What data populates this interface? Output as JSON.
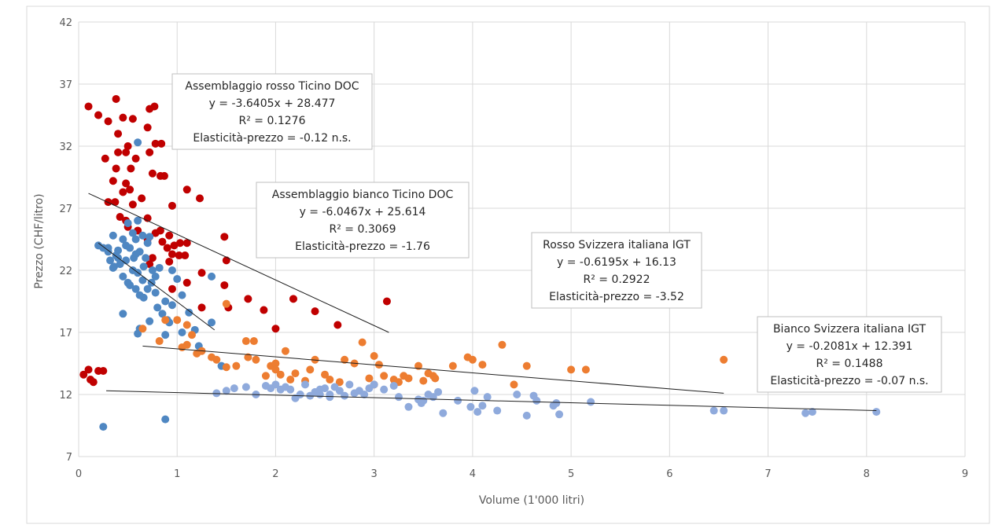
{
  "chart_data": {
    "type": "scatter",
    "title": "",
    "xlabel": "Volume (1'000 litri)",
    "ylabel": "Prezzo (CHF/litro)",
    "xlim": [
      0,
      9
    ],
    "ylim": [
      7,
      42
    ],
    "x_ticks": [
      "0",
      "1",
      "2",
      "3",
      "4",
      "5",
      "6",
      "7",
      "8",
      "9"
    ],
    "y_ticks": [
      "7",
      "12",
      "17",
      "22",
      "27",
      "32",
      "37",
      "42"
    ],
    "grid": true,
    "legend": "none",
    "series": [
      {
        "key": "rosso_doc",
        "color": "#c00000",
        "points": [
          [
            0.1,
            35.2
          ],
          [
            0.2,
            34.5
          ],
          [
            0.3,
            34.0
          ],
          [
            0.38,
            35.8
          ],
          [
            0.45,
            34.3
          ],
          [
            0.55,
            34.2
          ],
          [
            0.72,
            35.0
          ],
          [
            0.77,
            35.2
          ],
          [
            0.7,
            33.5
          ],
          [
            0.4,
            33.0
          ],
          [
            0.5,
            32.0
          ],
          [
            0.78,
            32.2
          ],
          [
            0.84,
            32.2
          ],
          [
            0.4,
            31.5
          ],
          [
            0.48,
            31.5
          ],
          [
            0.27,
            31.0
          ],
          [
            0.58,
            31.0
          ],
          [
            0.72,
            31.5
          ],
          [
            0.38,
            30.2
          ],
          [
            0.53,
            30.2
          ],
          [
            0.75,
            29.8
          ],
          [
            0.83,
            29.6
          ],
          [
            0.87,
            29.6
          ],
          [
            0.35,
            29.2
          ],
          [
            0.48,
            29.0
          ],
          [
            0.52,
            28.5
          ],
          [
            0.45,
            28.3
          ],
          [
            0.64,
            27.8
          ],
          [
            0.3,
            27.5
          ],
          [
            0.37,
            27.5
          ],
          [
            0.55,
            27.3
          ],
          [
            0.95,
            27.2
          ],
          [
            1.1,
            28.5
          ],
          [
            1.23,
            27.8
          ],
          [
            0.42,
            26.3
          ],
          [
            0.48,
            26.0
          ],
          [
            0.7,
            26.2
          ],
          [
            0.5,
            25.5
          ],
          [
            0.6,
            25.2
          ],
          [
            0.78,
            25.0
          ],
          [
            0.83,
            25.2
          ],
          [
            0.92,
            24.8
          ],
          [
            0.7,
            24.5
          ],
          [
            0.85,
            24.3
          ],
          [
            0.9,
            23.8
          ],
          [
            0.97,
            24.0
          ],
          [
            1.03,
            24.2
          ],
          [
            1.1,
            24.2
          ],
          [
            0.95,
            23.3
          ],
          [
            1.02,
            23.2
          ],
          [
            1.08,
            23.2
          ],
          [
            0.75,
            23.0
          ],
          [
            0.92,
            22.7
          ],
          [
            0.72,
            22.5
          ],
          [
            1.48,
            24.7
          ],
          [
            1.5,
            22.8
          ],
          [
            1.25,
            21.8
          ],
          [
            1.1,
            21.0
          ],
          [
            1.48,
            20.8
          ],
          [
            0.95,
            20.5
          ],
          [
            1.25,
            19.0
          ],
          [
            1.52,
            19.0
          ],
          [
            1.72,
            19.7
          ],
          [
            2.18,
            19.7
          ],
          [
            1.88,
            18.8
          ],
          [
            2.4,
            18.7
          ],
          [
            3.13,
            19.5
          ],
          [
            2.0,
            17.3
          ],
          [
            2.63,
            17.6
          ],
          [
            0.05,
            13.6
          ],
          [
            0.1,
            14.0
          ],
          [
            0.12,
            13.2
          ],
          [
            0.15,
            13.0
          ],
          [
            0.2,
            13.9
          ],
          [
            0.25,
            13.9
          ]
        ]
      },
      {
        "key": "bianco_doc",
        "color": "#4f87c2",
        "points": [
          [
            0.2,
            24.0
          ],
          [
            0.25,
            23.8
          ],
          [
            0.3,
            23.5
          ],
          [
            0.35,
            24.8
          ],
          [
            0.38,
            23.2
          ],
          [
            0.4,
            23.0
          ],
          [
            0.42,
            22.5
          ],
          [
            0.45,
            24.5
          ],
          [
            0.48,
            24.0
          ],
          [
            0.5,
            25.8
          ],
          [
            0.52,
            23.8
          ],
          [
            0.55,
            25.0
          ],
          [
            0.58,
            24.5
          ],
          [
            0.6,
            26.0
          ],
          [
            0.62,
            23.5
          ],
          [
            0.65,
            24.8
          ],
          [
            0.68,
            23.0
          ],
          [
            0.7,
            24.2
          ],
          [
            0.72,
            24.7
          ],
          [
            0.45,
            21.5
          ],
          [
            0.5,
            21.0
          ],
          [
            0.55,
            22.0
          ],
          [
            0.58,
            20.5
          ],
          [
            0.6,
            21.8
          ],
          [
            0.62,
            20.0
          ],
          [
            0.65,
            21.2
          ],
          [
            0.7,
            20.5
          ],
          [
            0.75,
            22.0
          ],
          [
            0.78,
            21.5
          ],
          [
            0.8,
            19.0
          ],
          [
            0.85,
            18.5
          ],
          [
            0.88,
            19.5
          ],
          [
            0.9,
            18.0
          ],
          [
            0.92,
            17.8
          ],
          [
            0.95,
            19.2
          ],
          [
            1.05,
            20.0
          ],
          [
            1.0,
            21.3
          ],
          [
            0.95,
            22.0
          ],
          [
            0.6,
            32.3
          ],
          [
            0.45,
            18.5
          ],
          [
            0.62,
            17.3
          ],
          [
            0.6,
            16.9
          ],
          [
            0.72,
            17.9
          ],
          [
            0.88,
            16.8
          ],
          [
            1.05,
            17.0
          ],
          [
            1.12,
            18.6
          ],
          [
            1.18,
            17.2
          ],
          [
            1.35,
            17.8
          ],
          [
            1.35,
            21.5
          ],
          [
            1.22,
            15.9
          ],
          [
            1.45,
            14.3
          ],
          [
            0.25,
            9.4
          ],
          [
            0.88,
            10.0
          ],
          [
            0.32,
            22.8
          ],
          [
            0.36,
            22.3
          ],
          [
            0.4,
            23.6
          ],
          [
            0.56,
            23.0
          ],
          [
            0.66,
            22.3
          ],
          [
            0.74,
            21.0
          ],
          [
            0.52,
            20.8
          ],
          [
            0.66,
            19.8
          ],
          [
            0.82,
            22.2
          ],
          [
            0.78,
            20.2
          ],
          [
            0.48,
            22.8
          ],
          [
            0.58,
            23.3
          ],
          [
            0.3,
            23.8
          ],
          [
            0.35,
            22.2
          ]
        ]
      },
      {
        "key": "rosso_igt",
        "color": "#ed7d31",
        "points": [
          [
            0.65,
            17.3
          ],
          [
            0.82,
            16.3
          ],
          [
            0.88,
            18.0
          ],
          [
            1.0,
            18.0
          ],
          [
            1.1,
            17.6
          ],
          [
            1.05,
            15.8
          ],
          [
            1.1,
            16.0
          ],
          [
            1.15,
            16.8
          ],
          [
            1.2,
            15.3
          ],
          [
            1.25,
            15.5
          ],
          [
            1.35,
            15.0
          ],
          [
            1.4,
            14.8
          ],
          [
            1.5,
            14.2
          ],
          [
            1.5,
            19.3
          ],
          [
            1.7,
            16.3
          ],
          [
            1.78,
            16.3
          ],
          [
            1.72,
            15.0
          ],
          [
            1.8,
            14.8
          ],
          [
            1.95,
            14.3
          ],
          [
            2.0,
            14.5
          ],
          [
            2.05,
            13.6
          ],
          [
            2.1,
            15.5
          ],
          [
            2.2,
            13.7
          ],
          [
            2.35,
            14.0
          ],
          [
            2.4,
            14.8
          ],
          [
            2.5,
            13.6
          ],
          [
            2.55,
            13.2
          ],
          [
            2.7,
            14.8
          ],
          [
            2.8,
            14.5
          ],
          [
            2.88,
            16.2
          ],
          [
            2.95,
            13.3
          ],
          [
            3.0,
            15.1
          ],
          [
            3.05,
            14.4
          ],
          [
            3.1,
            13.5
          ],
          [
            3.2,
            13.2
          ],
          [
            3.25,
            13.0
          ],
          [
            3.3,
            13.5
          ],
          [
            3.45,
            14.3
          ],
          [
            3.55,
            13.7
          ],
          [
            3.6,
            13.5
          ],
          [
            3.8,
            14.3
          ],
          [
            3.95,
            15.0
          ],
          [
            4.0,
            14.8
          ],
          [
            4.1,
            14.4
          ],
          [
            4.3,
            16.0
          ],
          [
            4.42,
            12.8
          ],
          [
            4.55,
            14.3
          ],
          [
            5.0,
            14.0
          ],
          [
            5.15,
            14.0
          ],
          [
            6.55,
            14.8
          ],
          [
            1.9,
            13.5
          ],
          [
            2.15,
            13.2
          ],
          [
            2.3,
            13.1
          ],
          [
            2.65,
            13.0
          ],
          [
            3.0,
            12.8
          ],
          [
            3.35,
            13.3
          ],
          [
            3.5,
            13.1
          ],
          [
            3.62,
            13.3
          ],
          [
            1.6,
            14.3
          ],
          [
            2.0,
            14.0
          ]
        ]
      },
      {
        "key": "bianco_igt",
        "color": "#8faadc",
        "points": [
          [
            1.4,
            12.1
          ],
          [
            1.5,
            12.3
          ],
          [
            1.58,
            12.5
          ],
          [
            1.7,
            12.6
          ],
          [
            1.8,
            12.0
          ],
          [
            1.9,
            12.7
          ],
          [
            1.95,
            12.5
          ],
          [
            2.0,
            12.8
          ],
          [
            2.05,
            12.4
          ],
          [
            2.1,
            12.6
          ],
          [
            2.15,
            12.4
          ],
          [
            2.25,
            12.0
          ],
          [
            2.3,
            12.8
          ],
          [
            2.35,
            11.9
          ],
          [
            2.4,
            12.2
          ],
          [
            2.45,
            12.4
          ],
          [
            2.5,
            12.5
          ],
          [
            2.55,
            12.0
          ],
          [
            2.6,
            12.6
          ],
          [
            2.65,
            12.3
          ],
          [
            2.7,
            11.9
          ],
          [
            2.75,
            12.8
          ],
          [
            2.8,
            12.1
          ],
          [
            2.85,
            12.3
          ],
          [
            2.9,
            12.0
          ],
          [
            2.95,
            12.5
          ],
          [
            3.0,
            12.8
          ],
          [
            3.1,
            12.4
          ],
          [
            3.2,
            12.7
          ],
          [
            3.25,
            11.8
          ],
          [
            3.35,
            11.0
          ],
          [
            3.45,
            11.6
          ],
          [
            3.5,
            11.5
          ],
          [
            3.55,
            12.0
          ],
          [
            3.6,
            11.8
          ],
          [
            3.65,
            12.2
          ],
          [
            3.7,
            10.5
          ],
          [
            3.85,
            11.5
          ],
          [
            3.98,
            11.0
          ],
          [
            4.02,
            12.3
          ],
          [
            4.05,
            10.6
          ],
          [
            4.1,
            11.1
          ],
          [
            4.15,
            11.8
          ],
          [
            4.25,
            10.7
          ],
          [
            4.45,
            12.0
          ],
          [
            4.55,
            10.3
          ],
          [
            4.62,
            11.9
          ],
          [
            4.65,
            11.5
          ],
          [
            4.82,
            11.1
          ],
          [
            4.88,
            10.4
          ],
          [
            4.85,
            11.3
          ],
          [
            5.2,
            11.4
          ],
          [
            6.45,
            10.7
          ],
          [
            6.55,
            10.7
          ],
          [
            7.38,
            10.5
          ],
          [
            7.45,
            10.6
          ],
          [
            8.1,
            10.6
          ],
          [
            2.2,
            11.7
          ],
          [
            2.55,
            11.8
          ],
          [
            3.48,
            11.3
          ],
          [
            2.45,
            12.0
          ]
        ]
      }
    ],
    "trendlines": [
      {
        "key": "rosso_doc",
        "x": [
          0.1,
          3.15
        ],
        "y": [
          28.2,
          17.0
        ]
      },
      {
        "key": "bianco_doc",
        "x": [
          0.2,
          1.38
        ],
        "y": [
          24.2,
          17.2
        ]
      },
      {
        "key": "rosso_igt",
        "x": [
          0.65,
          6.55
        ],
        "y": [
          15.9,
          12.1
        ]
      },
      {
        "key": "bianco_igt",
        "x": [
          0.28,
          8.1
        ],
        "y": [
          12.3,
          10.7
        ]
      }
    ],
    "annotations": [
      {
        "lines": [
          "Assemblaggio rosso Ticino DOC",
          "y = -3.6405x + 28.477",
          "R² = 0.1276",
          "Elasticità-prezzo = -0.12 n.s."
        ]
      },
      {
        "lines": [
          "Assemblaggio bianco Ticino DOC",
          "y = -6.0467x + 25.614",
          "R² = 0.3069",
          "Elasticità-prezzo = -1.76"
        ]
      },
      {
        "lines": [
          "Rosso Svizzera italiana IGT",
          "y = -0.6195x + 16.13",
          "R² = 0.2922",
          "Elasticità-prezzo = -3.52"
        ]
      },
      {
        "lines": [
          "Bianco Svizzera italiana IGT",
          "y = -0.2081x + 12.391",
          "R² = 0.1488",
          "Elasticità-prezzo = -0.07 n.s."
        ]
      }
    ]
  }
}
